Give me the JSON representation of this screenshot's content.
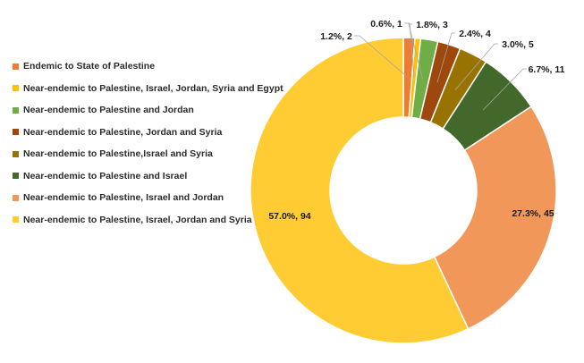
{
  "chart_data": {
    "type": "pie",
    "variant": "doughnut",
    "title": "",
    "legend_position": "left",
    "slices": [
      {
        "name": "Endemic to State of Palestine",
        "value": 2,
        "percent": "1.2%",
        "label": "1.2%, 2",
        "color": "#ED7D31"
      },
      {
        "name": "Near-endemic to Palestine, Israel,  Jordan, Syria and Egypt",
        "value": 1,
        "percent": "0.6%",
        "label": "0.6%, 1",
        "color": "#FFC000"
      },
      {
        "name": "Near-endemic to Palestine and Jordan",
        "value": 3,
        "percent": "1.8%",
        "label": "1.8%, 3",
        "color": "#70AD47"
      },
      {
        "name": "Near-endemic to Palestine, Jordan and Syria",
        "value": 4,
        "percent": "2.4%",
        "label": "2.4%, 4",
        "color": "#9E480E"
      },
      {
        "name": "Near-endemic to Palestine,Israel and Syria",
        "value": 5,
        "percent": "3.0%",
        "label": "3.0%, 5",
        "color": "#997300"
      },
      {
        "name": "Near-endemic to Palestine and Israel",
        "value": 11,
        "percent": "6.7%",
        "label": "6.7%, 11",
        "color": "#43682B"
      },
      {
        "name": "Near-endemic to Palestine, Israel and Jordan",
        "value": 45,
        "percent": "27.3%",
        "label": "27.3%, 45",
        "color": "#F1975A"
      },
      {
        "name": "Near-endemic to Palestine, Israel,  Jordan and Syria",
        "value": 94,
        "percent": "57.0%",
        "label": "57.0%, 94",
        "color": "#FFCD33"
      }
    ]
  }
}
